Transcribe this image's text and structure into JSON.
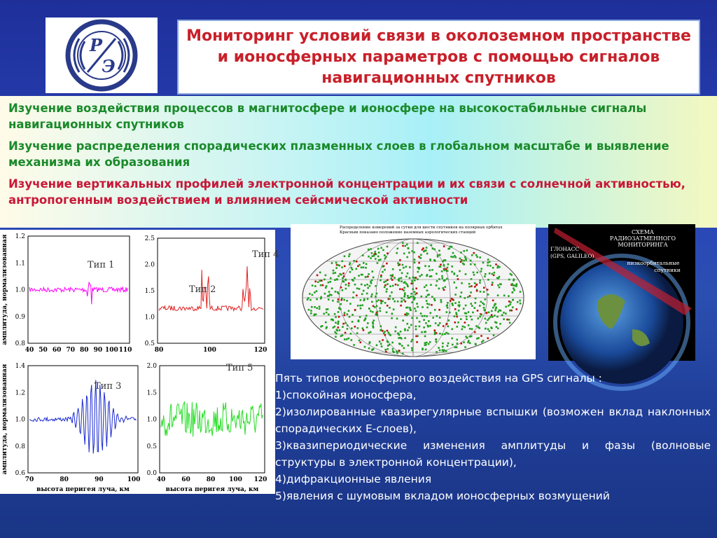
{
  "logo": {
    "letters": [
      "Р",
      "Э"
    ]
  },
  "header": {
    "title": "Мониторинг условий связи в околоземном пространстве и ионосферных параметров с помощью сигналов навигационных спутников"
  },
  "goals": [
    "Изучение  воздействия процессов в магнитосфере и ионосфере на высокостабильные сигналы навигационных спутников",
    "Изучение  распределения спорадических плазменных слоев в глобальном масштабе и выявление механизма их образования",
    "Изучение вертикальных профилей электронной концентрации и их связи с солнечной активностью, антропогенным воздействием и влиянием сейсмической активности"
  ],
  "panels": [
    {
      "labels": [
        "Тип 1"
      ],
      "color": "#ff00ff",
      "yticks": [
        "0.8",
        "0.9",
        "1.0",
        "1.1",
        "1.2"
      ],
      "xticks": [
        "40",
        "50",
        "60",
        "70",
        "80",
        "90",
        "100",
        "110"
      ],
      "ylabel": "амплитуда, нормализованная"
    },
    {
      "labels": [
        "Тип 4",
        "Тип 2"
      ],
      "color": "#e02020",
      "yticks": [
        "0.5",
        "1.0",
        "1.5",
        "2.0",
        "2.5"
      ],
      "xticks": [
        "80",
        "100",
        "120"
      ]
    },
    {
      "labels": [
        "Тип 3"
      ],
      "color": "#1a2ad0",
      "yticks": [
        "0.6",
        "0.8",
        "1.0",
        "1.2",
        "1.4"
      ],
      "xticks": [
        "70",
        "80",
        "90",
        "100"
      ],
      "ylabel": "амплитуда, нормализованная",
      "xlabel": "высота перигея луча, км"
    },
    {
      "labels": [
        "Тип  5"
      ],
      "color": "#22dd22",
      "yticks": [
        "0.0",
        "0.5",
        "1.0",
        "1.5",
        "2.0"
      ],
      "xticks": [
        "40",
        "60",
        "80",
        "100",
        "120"
      ],
      "xlabel": "высота перигея луча, км"
    }
  ],
  "map": {
    "caption": [
      "Распределение измерений за сутки для шести спутников на полярных орбитах",
      "Красным показано положение наземных аэрологических станций"
    ]
  },
  "scheme": {
    "title": [
      "СХЕМА",
      "РАДИОЗАТМЕННОГО",
      "МОНИТОРИНГА"
    ],
    "gnss": [
      "ГЛОНАСС",
      "(GPS, GALILEO)"
    ],
    "leo": [
      "низкоорбитальные",
      "спутники"
    ]
  },
  "types": {
    "intro": "Пять типов ионосферного воздействия на GPS сигналы :",
    "items": [
      "1)спокойная ионосфера,",
      "2)изолированные квазирегулярные вспышки (возможен вклад наклонных спорадических Е-слоев),",
      "3)квазипериодические изменения амплитуды и фазы (волновые структуры в электронной концентрации),",
      "4)дифракционные явления",
      "5)явления с шумовым вкладом ионосферных возмущений"
    ]
  }
}
